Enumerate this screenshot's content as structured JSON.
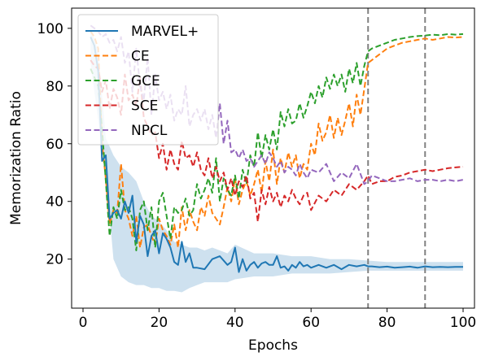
{
  "chart_data": {
    "type": "line",
    "xlabel": "Epochs",
    "ylabel": "Memorization Ratio",
    "xlim": [
      -3,
      103
    ],
    "ylim": [
      3,
      107
    ],
    "xticks": [
      0,
      20,
      40,
      60,
      80,
      100
    ],
    "yticks": [
      20,
      40,
      60,
      80,
      100
    ],
    "grid": false,
    "legend_position": "top-left",
    "vlines": {
      "values": [
        75,
        90
      ],
      "color": "#808080",
      "style": "dashed"
    },
    "band": {
      "series": "MARVEL+",
      "color": "#1f77b4",
      "x": [
        2,
        4,
        6,
        8,
        10,
        12,
        14,
        16,
        18,
        20,
        22,
        24,
        26,
        28,
        30,
        32,
        34,
        36,
        38,
        40,
        45,
        50,
        55,
        60,
        65,
        70,
        75,
        80,
        85,
        90,
        95,
        100
      ],
      "upper": [
        100,
        92,
        62,
        56,
        52,
        50,
        47,
        40,
        35,
        33,
        30,
        26,
        25,
        24,
        24,
        23,
        24,
        23,
        22,
        25,
        22,
        22,
        21,
        21,
        20,
        20,
        19.5,
        19,
        19,
        19,
        19,
        19
      ],
      "lower": [
        88,
        68,
        50,
        20,
        14,
        12,
        11,
        11,
        10,
        10,
        9,
        9,
        8.5,
        10,
        11,
        12,
        12,
        12,
        12,
        13,
        14,
        14,
        15,
        15,
        15,
        15.5,
        16,
        16,
        16,
        16,
        16,
        16
      ]
    },
    "series": [
      {
        "name": "MARVEL+",
        "color": "#1f77b4",
        "dash": "solid",
        "x": [
          2,
          3,
          4,
          5,
          6,
          7,
          8,
          9,
          10,
          11,
          12,
          13,
          14,
          15,
          16,
          17,
          18,
          19,
          20,
          21,
          22,
          23,
          24,
          25,
          26,
          27,
          28,
          29,
          30,
          32,
          34,
          36,
          38,
          39,
          40,
          41,
          42,
          43,
          44,
          45,
          46,
          47,
          48,
          49,
          50,
          51,
          52,
          53,
          54,
          55,
          56,
          57,
          58,
          59,
          60,
          62,
          64,
          66,
          68,
          70,
          72,
          74,
          75,
          76,
          78,
          80,
          82,
          84,
          86,
          88,
          90,
          92,
          94,
          96,
          98,
          100
        ],
        "y": [
          97,
          94,
          85,
          54,
          56,
          34,
          36,
          37,
          34,
          40,
          36,
          42,
          26,
          35,
          32,
          21,
          28,
          30,
          22,
          29,
          27,
          24,
          19,
          18,
          26,
          19,
          22,
          17,
          17,
          16.5,
          20,
          21,
          18,
          19,
          24,
          15.5,
          20,
          16,
          18,
          19,
          17,
          18.5,
          19,
          18,
          18,
          21,
          17,
          17.5,
          16,
          18,
          17,
          19,
          17.5,
          18,
          17,
          18,
          17,
          18,
          16.5,
          18,
          17.5,
          18,
          17.5,
          17.5,
          17.2,
          17.4,
          17,
          17.2,
          17.4,
          17,
          17.5,
          17.2,
          17.3,
          17.2,
          17.3,
          17.3
        ]
      },
      {
        "name": "CE",
        "color": "#ff7f0e",
        "dash": "dashed",
        "x": [
          2,
          3,
          4,
          5,
          6,
          7,
          8,
          9,
          10,
          11,
          12,
          13,
          14,
          15,
          16,
          17,
          18,
          19,
          20,
          21,
          22,
          23,
          24,
          25,
          26,
          27,
          28,
          29,
          30,
          31,
          32,
          33,
          34,
          35,
          36,
          37,
          38,
          39,
          40,
          41,
          42,
          43,
          44,
          45,
          46,
          47,
          48,
          49,
          50,
          51,
          52,
          53,
          54,
          55,
          56,
          57,
          58,
          59,
          60,
          61,
          62,
          63,
          64,
          65,
          66,
          67,
          68,
          69,
          70,
          71,
          72,
          73,
          74,
          75,
          76,
          78,
          80,
          82,
          84,
          86,
          88,
          90,
          92,
          94,
          96,
          98,
          100
        ],
        "y": [
          99,
          97,
          93,
          60,
          48,
          32,
          37,
          36,
          53,
          37,
          34,
          28,
          35,
          24,
          31,
          32,
          28,
          25,
          34,
          30,
          28,
          25,
          32,
          24,
          38,
          30,
          37,
          33,
          30,
          38,
          35,
          42,
          36,
          34,
          32,
          38,
          45,
          40,
          48,
          39,
          44,
          47,
          42,
          46,
          51,
          43,
          54,
          47,
          58,
          46,
          55,
          50,
          57,
          52,
          56,
          48,
          53,
          51,
          60,
          56,
          67,
          61,
          64,
          70,
          62,
          69,
          63,
          68,
          74,
          66,
          77,
          70,
          79,
          88,
          89,
          91,
          93,
          94,
          95,
          95.5,
          96,
          96.5,
          96,
          96.5,
          97,
          96.8,
          97
        ]
      },
      {
        "name": "GCE",
        "color": "#2ca02c",
        "dash": "dashed",
        "x": [
          2,
          3,
          4,
          5,
          6,
          7,
          8,
          9,
          10,
          11,
          12,
          13,
          14,
          15,
          16,
          17,
          18,
          19,
          20,
          21,
          22,
          23,
          24,
          25,
          26,
          27,
          28,
          29,
          30,
          31,
          32,
          33,
          34,
          35,
          36,
          37,
          38,
          39,
          40,
          41,
          42,
          43,
          44,
          45,
          46,
          47,
          48,
          49,
          50,
          51,
          52,
          53,
          54,
          55,
          56,
          57,
          58,
          59,
          60,
          61,
          62,
          63,
          64,
          65,
          66,
          67,
          68,
          69,
          70,
          71,
          72,
          73,
          74,
          75,
          76,
          78,
          80,
          82,
          84,
          86,
          88,
          90,
          92,
          94,
          96,
          98,
          100
        ],
        "y": [
          86,
          83,
          80,
          65,
          47,
          28,
          38,
          34,
          44,
          37,
          38,
          34,
          23,
          37,
          40,
          30,
          38,
          24,
          40,
          43,
          35,
          27,
          38,
          36,
          37,
          41,
          35,
          37,
          46,
          41,
          44,
          48,
          43,
          55,
          40,
          48,
          44,
          42,
          49,
          41,
          51,
          46,
          56,
          52,
          64,
          55,
          63,
          58,
          65,
          58,
          71,
          66,
          72,
          67,
          68,
          74,
          69,
          73,
          78,
          74,
          80,
          76,
          83,
          79,
          84,
          80,
          84,
          78,
          86,
          81,
          88,
          80,
          87,
          92,
          93,
          94,
          95,
          96,
          96.5,
          97,
          97.3,
          97.5,
          97.8,
          97.6,
          98,
          97.8,
          98
        ]
      },
      {
        "name": "SCE",
        "color": "#d62728",
        "dash": "dashed",
        "x": [
          2,
          3,
          4,
          5,
          6,
          7,
          8,
          9,
          10,
          11,
          12,
          13,
          14,
          15,
          16,
          17,
          18,
          19,
          20,
          21,
          22,
          23,
          24,
          25,
          26,
          27,
          28,
          29,
          30,
          31,
          32,
          33,
          34,
          35,
          36,
          37,
          38,
          39,
          40,
          41,
          42,
          43,
          44,
          45,
          46,
          47,
          48,
          49,
          50,
          51,
          52,
          53,
          54,
          55,
          56,
          57,
          58,
          59,
          60,
          62,
          64,
          66,
          68,
          70,
          72,
          74,
          75,
          76,
          78,
          80,
          82,
          84,
          86,
          88,
          90,
          92,
          94,
          96,
          98,
          100
        ],
        "y": [
          89,
          87,
          86,
          78,
          82,
          72,
          79,
          76,
          70,
          84,
          75,
          77,
          73,
          83,
          69,
          66,
          63,
          64,
          55,
          60,
          51,
          58,
          53,
          51,
          61,
          55,
          56,
          52,
          57,
          51,
          49,
          55,
          48,
          52,
          47,
          50,
          44,
          48,
          42,
          47,
          45,
          49,
          41,
          43,
          33,
          44,
          39,
          45,
          40,
          43,
          38,
          42,
          40,
          44,
          41,
          39,
          42,
          43,
          37,
          42,
          40,
          44,
          42,
          46,
          44,
          47,
          49,
          46,
          47,
          47,
          48.5,
          49,
          50,
          50.5,
          51,
          50.5,
          51,
          51.5,
          51.8,
          52
        ]
      },
      {
        "name": "NPCL",
        "color": "#9467bd",
        "dash": "dashed",
        "x": [
          2,
          3,
          4,
          5,
          6,
          7,
          8,
          9,
          10,
          11,
          12,
          13,
          14,
          15,
          16,
          17,
          18,
          19,
          20,
          21,
          22,
          23,
          24,
          25,
          26,
          27,
          28,
          29,
          30,
          31,
          32,
          33,
          34,
          35,
          36,
          37,
          38,
          39,
          40,
          41,
          42,
          43,
          44,
          45,
          46,
          47,
          48,
          49,
          50,
          51,
          52,
          53,
          54,
          55,
          56,
          57,
          58,
          59,
          60,
          62,
          64,
          66,
          68,
          70,
          72,
          74,
          75,
          76,
          78,
          80,
          82,
          84,
          86,
          88,
          90,
          92,
          94,
          96,
          98,
          100
        ],
        "y": [
          101,
          100,
          99,
          97,
          98,
          95,
          96,
          92,
          97,
          88,
          92,
          78,
          93,
          80,
          75,
          90,
          70,
          84,
          75,
          78,
          72,
          77,
          68,
          72,
          70,
          80,
          66,
          70,
          72,
          68,
          72,
          65,
          70,
          62,
          74,
          60,
          68,
          57,
          58,
          55,
          58,
          54,
          55,
          52,
          54,
          56,
          53,
          57,
          55,
          52,
          54,
          50,
          52,
          51,
          49,
          53,
          50,
          48,
          51,
          50,
          53,
          47,
          50,
          48,
          53,
          46,
          47,
          49,
          48,
          47,
          47,
          47.5,
          48,
          47,
          47.5,
          47.5,
          47,
          47.5,
          47,
          47.5
        ]
      }
    ]
  }
}
